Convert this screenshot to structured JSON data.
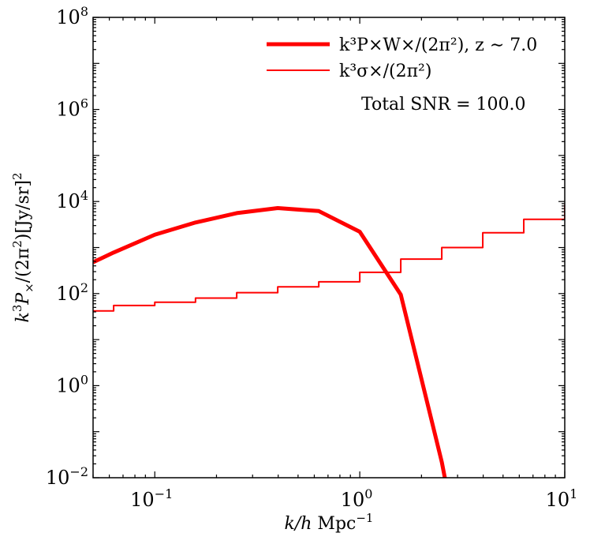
{
  "chart_data": {
    "type": "line",
    "xscale": "log",
    "yscale": "log",
    "xlim": [
      0.05,
      10
    ],
    "ylim": [
      0.01,
      100000000
    ],
    "xlabel": "k/h Mpc^-1",
    "ylabel": "k^3 P_× / (2π^2) [Jy/sr]^2",
    "x_ticks": [
      {
        "value": 0.1,
        "base": "10",
        "exp": "−1"
      },
      {
        "value": 1,
        "base": "10",
        "exp": "0"
      },
      {
        "value": 10,
        "base": "10",
        "exp": "1"
      }
    ],
    "y_ticks": [
      {
        "value": 0.01,
        "base": "10",
        "exp": "−2"
      },
      {
        "value": 1,
        "base": "10",
        "exp": "0"
      },
      {
        "value": 100,
        "base": "10",
        "exp": "2"
      },
      {
        "value": 10000,
        "base": "10",
        "exp": "4"
      },
      {
        "value": 1000000,
        "base": "10",
        "exp": "6"
      },
      {
        "value": 100000000,
        "base": "10",
        "exp": "8"
      }
    ],
    "series": [
      {
        "name": "k^3 P_× W_× / (2π^2), z ~ 7.0",
        "style": "line",
        "color": "#ff0000",
        "width": "thick",
        "x": [
          0.05,
          0.063,
          0.1,
          0.158,
          0.251,
          0.398,
          0.631,
          1.0,
          1.585,
          2.512,
          2.6
        ],
        "y": [
          480,
          780,
          1900,
          3500,
          5600,
          7200,
          6200,
          2200,
          95,
          0.022,
          0.01
        ]
      },
      {
        "name": "k^3 σ_× / (2π^2)",
        "style": "step",
        "color": "#ff0000",
        "width": "thin",
        "x": [
          0.05,
          0.063,
          0.1,
          0.158,
          0.251,
          0.398,
          0.631,
          1.0,
          1.585,
          2.512,
          3.981,
          6.31,
          10.0
        ],
        "y": [
          42,
          55,
          65,
          80,
          105,
          140,
          180,
          290,
          560,
          1000,
          2100,
          4100,
          8500
        ]
      }
    ],
    "legend": {
      "placement": "top-right",
      "entries": [
        {
          "series_index": 0,
          "text": "k³P×W×/(2π²), z ∼ 7.0"
        },
        {
          "series_index": 1,
          "text": "k³σ×/(2π²)"
        }
      ]
    },
    "annotations": [
      {
        "text": "Total SNR = 100.0",
        "placement": "upper-right"
      }
    ]
  }
}
